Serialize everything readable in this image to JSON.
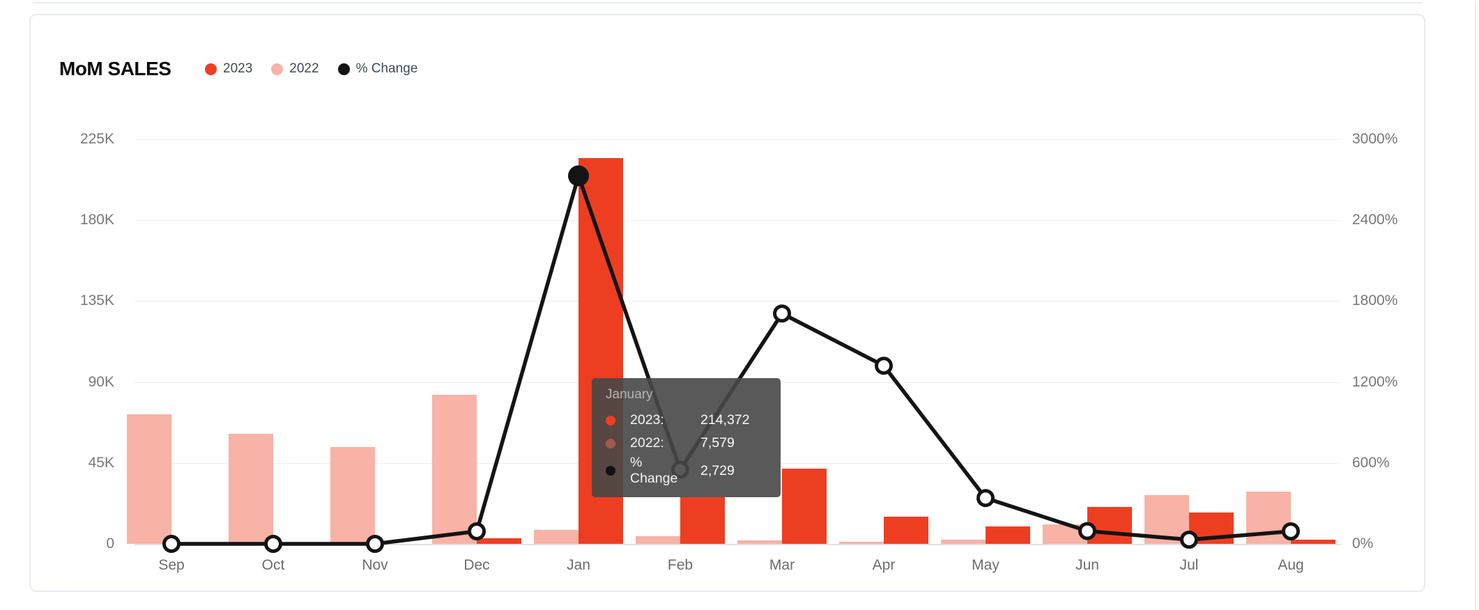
{
  "card": {
    "title": "MoM SALES"
  },
  "chart_data": {
    "type": "bar",
    "subtype": "grouped-bars-with-line",
    "title": "MoM SALES",
    "categories": [
      "Sep",
      "Oct",
      "Nov",
      "Dec",
      "Jan",
      "Feb",
      "Mar",
      "Apr",
      "May",
      "Jun",
      "Jul",
      "Aug"
    ],
    "series": [
      {
        "name": "2023",
        "type": "bar",
        "color": "#ee3e22",
        "axis": "left",
        "values": [
          0,
          0,
          0,
          3200,
          214372,
          26000,
          42000,
          15000,
          9700,
          20600,
          17400,
          2200
        ]
      },
      {
        "name": "2022",
        "type": "bar",
        "color": "#f8b2a6",
        "axis": "left",
        "values": [
          72000,
          61000,
          54000,
          83000,
          7579,
          4300,
          2000,
          1300,
          2200,
          11000,
          27200,
          28900
        ]
      },
      {
        "name": "% Change",
        "type": "line",
        "color": "#141414",
        "axis": "right",
        "values": [
          0,
          0,
          0,
          93,
          2729,
          550,
          1708,
          1321,
          340,
          95,
          31,
          93
        ]
      }
    ],
    "left_axis": {
      "labels": [
        "0",
        "45K",
        "90K",
        "135K",
        "180K",
        "225K"
      ],
      "min": 0,
      "max": 225000
    },
    "right_axis": {
      "labels": [
        "0%",
        "600%",
        "1200%",
        "1800%",
        "2400%",
        "3000%"
      ],
      "min": 0,
      "max": 3000
    },
    "grid": true,
    "legend_position": "top",
    "highlight_index": 4
  },
  "tooltip": {
    "title": "January",
    "rows": [
      {
        "label": "2023:",
        "value": "214,372",
        "marker_color": "#ee3e22"
      },
      {
        "label": "2022:",
        "value": "7,579",
        "marker_color": "#a2594e"
      },
      {
        "label": "% Change",
        "value": "2,729",
        "marker_color": "#111111"
      }
    ]
  }
}
